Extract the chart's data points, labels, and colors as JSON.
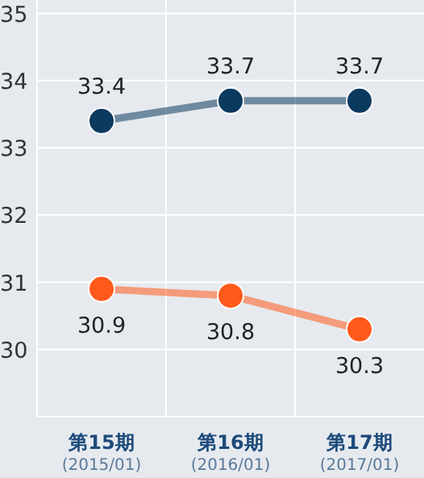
{
  "chart_data": {
    "type": "line",
    "categories": [
      "第15期\n(2015/01)",
      "第16期\n(2016/01)",
      "第17期\n(2017/01)"
    ],
    "series": [
      {
        "color": "#0b3a5f",
        "values": [
          33.4,
          33.7,
          33.7
        ]
      },
      {
        "color": "#ff5a1c",
        "values": [
          30.9,
          30.8,
          30.3
        ]
      }
    ],
    "ylim": [
      29,
      35.2
    ],
    "yticks": [
      30,
      31,
      32,
      33,
      34,
      35
    ],
    "grid": true,
    "marker": "circle",
    "line_style": "solid",
    "data_labels": true
  }
}
